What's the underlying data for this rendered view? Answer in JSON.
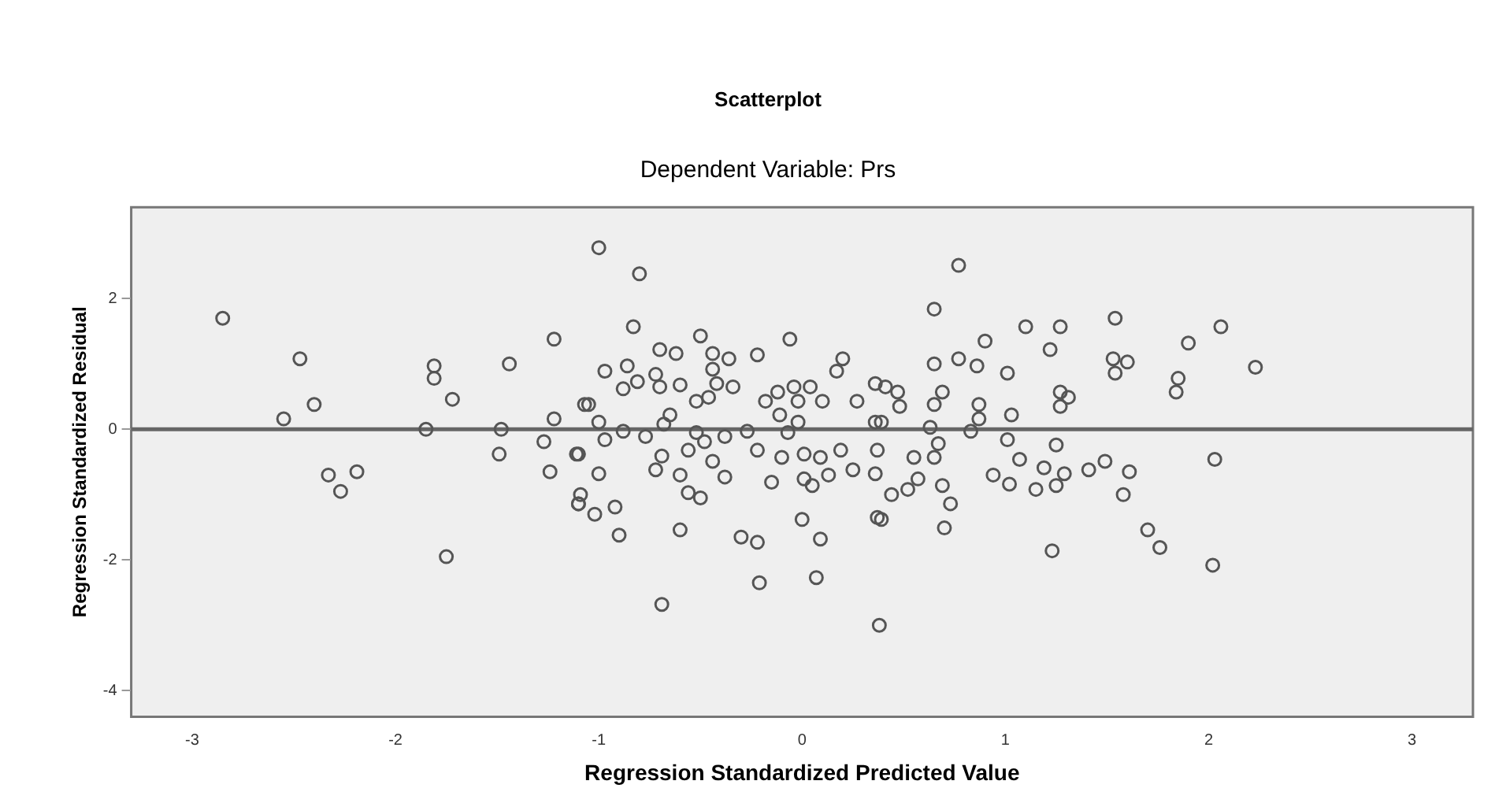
{
  "chart_data": {
    "type": "scatter",
    "title": "Scatterplot",
    "subtitle": "Dependent Variable: Prs",
    "xlabel": "Regression Standardized Predicted Value",
    "ylabel": "Regression Standardized Residual",
    "x": [
      -2.85,
      -2.47,
      -2.4,
      -2.55,
      -2.33,
      -2.19,
      -2.27,
      -1.85,
      -1.81,
      -1.81,
      -1.72,
      -1.75,
      -1.44,
      -1.48,
      -1.49,
      -1.22,
      -1.22,
      -1.27,
      -1.24,
      -1.11,
      -1.1,
      -1.09,
      -1.07,
      -1.0,
      -0.8,
      -0.83,
      -0.5,
      -0.06,
      -0.7,
      -0.62,
      -0.44,
      -0.36,
      -0.22,
      0.2,
      -0.97,
      -0.86,
      -0.88,
      -0.81,
      -0.72,
      -0.7,
      -0.6,
      -0.44,
      -0.42,
      -0.34,
      0.17,
      -0.52,
      -0.46,
      -1.05,
      -0.12,
      -0.04,
      0.04,
      -0.02,
      -0.18,
      0.1,
      0.27,
      0.36,
      -0.65,
      -0.68,
      -1.0,
      -0.11,
      -0.02,
      -0.88,
      -0.77,
      -0.52,
      -0.38,
      -0.27,
      -0.07,
      -1.1,
      -0.97,
      -0.56,
      -0.48,
      -0.69,
      -0.22,
      -0.1,
      0.01,
      0.09,
      0.19,
      0.37,
      -1.0,
      -0.72,
      -0.6,
      -0.44,
      -0.38,
      -0.15,
      0.01,
      0.05,
      0.13,
      0.25,
      0.36,
      -0.56,
      -0.5,
      -1.1,
      -1.02,
      -0.92,
      -0.9,
      -0.6,
      -0.3,
      -0.22,
      0.0,
      0.09,
      0.37,
      -0.21,
      0.07,
      -0.69,
      0.38,
      0.36,
      0.77,
      0.65,
      1.1,
      1.27,
      1.54,
      0.9,
      1.22,
      1.9,
      0.65,
      0.77,
      0.86,
      1.01,
      1.53,
      1.6,
      1.54,
      1.85,
      1.84,
      1.27,
      1.31,
      1.27,
      0.69,
      0.65,
      0.87,
      0.87,
      1.03,
      0.83,
      0.63,
      0.47,
      0.48,
      0.41,
      0.39,
      1.01,
      1.25,
      0.67,
      0.55,
      0.65,
      1.07,
      1.19,
      1.29,
      1.41,
      1.49,
      1.61,
      0.94,
      1.02,
      1.15,
      1.25,
      1.58,
      0.57,
      0.69,
      0.73,
      0.44,
      0.52,
      0.7,
      1.23,
      1.7,
      1.76,
      2.02,
      0.39,
      2.06,
      2.23,
      2.03
    ],
    "values": [
      1.7,
      1.08,
      0.38,
      0.16,
      -0.7,
      -0.65,
      -0.95,
      0,
      0.97,
      0.78,
      0.46,
      -1.95,
      1.0,
      0,
      -0.38,
      1.38,
      0.16,
      -0.19,
      -0.65,
      -0.38,
      -1.14,
      -1.0,
      0.38,
      2.78,
      2.38,
      1.57,
      1.43,
      1.38,
      1.22,
      1.16,
      1.16,
      1.08,
      1.14,
      1.08,
      0.89,
      0.97,
      0.62,
      0.73,
      0.84,
      0.65,
      0.68,
      0.92,
      0.7,
      0.65,
      0.89,
      0.43,
      0.49,
      0.38,
      0.57,
      0.65,
      0.65,
      0.43,
      0.43,
      0.43,
      0.43,
      0.7,
      0.22,
      0.08,
      0.11,
      0.22,
      0.11,
      -0.03,
      -0.11,
      -0.05,
      -0.11,
      -0.03,
      -0.05,
      -0.38,
      -0.16,
      -0.32,
      -0.19,
      -0.41,
      -0.32,
      -0.43,
      -0.38,
      -0.43,
      -0.32,
      -0.32,
      -0.68,
      -0.62,
      -0.7,
      -0.49,
      -0.73,
      -0.81,
      -0.76,
      -0.86,
      -0.7,
      -0.62,
      -0.68,
      -0.97,
      -1.05,
      -1.14,
      -1.3,
      -1.19,
      -1.62,
      -1.54,
      -1.65,
      -1.73,
      -1.38,
      -1.68,
      -1.35,
      -2.35,
      -2.27,
      -2.68,
      -3.0,
      0.11,
      2.51,
      1.84,
      1.57,
      1.57,
      1.7,
      1.35,
      1.22,
      1.32,
      1.0,
      1.08,
      0.97,
      0.86,
      1.08,
      1.03,
      0.86,
      0.78,
      0.57,
      0.57,
      0.49,
      0.35,
      0.57,
      0.38,
      0.38,
      0.16,
      0.22,
      -0.03,
      0.03,
      0.57,
      0.35,
      0.65,
      0.11,
      -0.16,
      -0.24,
      -0.22,
      -0.43,
      -0.43,
      -0.46,
      -0.59,
      -0.68,
      -0.62,
      -0.49,
      -0.65,
      -0.7,
      -0.84,
      -0.92,
      -0.86,
      -1.0,
      -0.76,
      -0.86,
      -1.14,
      -1.0,
      -0.92,
      -1.51,
      -1.86,
      -1.54,
      -1.81,
      -2.08,
      -1.38,
      1.57,
      0.95,
      -0.46
    ],
    "color": "#555555",
    "marker": "circle",
    "xlim": [
      -3.3,
      3.3
    ],
    "ylim": [
      -4.4,
      3.4
    ],
    "xticks": [
      -3,
      -2,
      -1,
      0,
      1,
      2,
      3
    ],
    "yticks": [
      -4,
      -2,
      0,
      2
    ],
    "grid": false,
    "ref_lines": [
      {
        "axis": "y",
        "value": 0,
        "color": "#666666"
      }
    ]
  }
}
